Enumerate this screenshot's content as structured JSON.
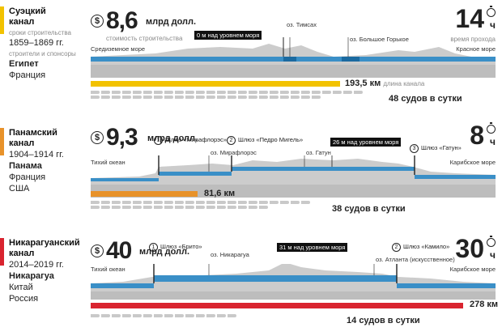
{
  "common": {
    "cost_unit": "млрд долл.",
    "time_unit": "ч",
    "km_unit": "км",
    "ships_suffix": "судов в сутки"
  },
  "suez": {
    "name": "Суэцкий канал",
    "color": "#f2c200",
    "build_label": "сроки строительства",
    "build_years": "1859–1869 гг.",
    "builders_label": "строители и спонсоры",
    "builders_main": "Египет",
    "builders_other": [
      "Франция"
    ],
    "cost": "8,6",
    "cost_label": "стоимость строительства",
    "time": "14",
    "time_label": "время прохода",
    "left_sea": "Средиземное море",
    "right_sea": "Красное море",
    "level_tag": "0 м над уровнем моря",
    "lakes": [
      "оз. Тимсах",
      "оз. Большое Горькое"
    ],
    "length": "193,5",
    "length_label": "длина канала",
    "length_km_fraction": 0.7,
    "ships": "48",
    "ships_shown": 48
  },
  "panama": {
    "name": "Панамский канал",
    "color": "#e8922a",
    "build_years": "1904–1914 гг.",
    "builders_main": "Панама",
    "builders_other": [
      "Франция",
      "США"
    ],
    "cost": "9,3",
    "time": "8",
    "left_sea": "Тихий океан",
    "right_sea": "Карибское море",
    "level_tag": "26 м над уровнем моря",
    "locks": [
      {
        "n": "1",
        "name": "Шлюз «Мирафлорэс»"
      },
      {
        "n": "2",
        "name": "Шлюз «Педро Мигель»"
      },
      {
        "n": "3",
        "name": "Шлюз «Гатун»"
      }
    ],
    "lakes": [
      "оз. Мирафлорэс",
      "оз. Гатун"
    ],
    "length": "81,6",
    "length_km_fraction": 0.29,
    "ships": "38",
    "ships_shown": 38
  },
  "nicaragua": {
    "name": "Никарагуанский канал",
    "color": "#d9242f",
    "build_years": "2014–2019 гг.",
    "builders_main": "Никарагуа",
    "builders_other": [
      "Китай",
      "Россия"
    ],
    "cost": "40",
    "time": "30",
    "left_sea": "Тихий океан",
    "right_sea": "Карибское море",
    "level_tag": "31 м над уровнем моря",
    "locks": [
      {
        "n": "1",
        "name": "Шлюз «Брито»"
      },
      {
        "n": "2",
        "name": "Шлюз «Камило»"
      }
    ],
    "lakes": [
      "оз. Никарагуа",
      "оз. Атланта (искусственное)"
    ],
    "length": "278",
    "length_km_fraction": 1.0,
    "ships": "14",
    "ships_shown": 14
  }
}
